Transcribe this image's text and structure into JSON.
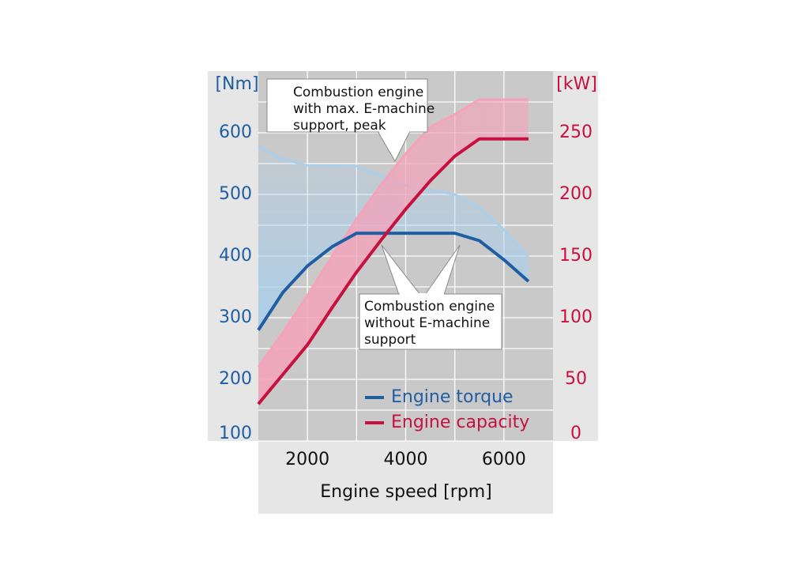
{
  "chart_data": {
    "type": "line",
    "x": [
      1000,
      1500,
      2000,
      2500,
      3000,
      3500,
      4000,
      4500,
      5000,
      5500,
      6000,
      6500
    ],
    "xlabel": "Engine speed [rpm]",
    "ylabel": "[Nm]",
    "y2label": "[kW]",
    "xlim": [
      1000,
      7000
    ],
    "xticks": [
      2000,
      4000,
      6000
    ],
    "ylim": [
      100,
      700
    ],
    "yticks": [
      100,
      200,
      300,
      400,
      500,
      600
    ],
    "y2lim": [
      0,
      300
    ],
    "y2ticks": [
      0,
      50,
      100,
      150,
      200,
      250
    ],
    "grid": true,
    "minor_grid": true,
    "legend": "lower right",
    "series": [
      {
        "name": "Engine torque",
        "color": "#1f5ea3",
        "axis": "y",
        "values": [
          280,
          341,
          384,
          415,
          437,
          437,
          437,
          437,
          437,
          425,
          394,
          359
        ],
        "peak_values": [
          578,
          557,
          547,
          547,
          546,
          530,
          515,
          507,
          500,
          479,
          443,
          399
        ],
        "peak_color": "#a9cfec"
      },
      {
        "name": "Engine capacity",
        "color": "#c8103e",
        "axis": "y2",
        "values": [
          30,
          54,
          78,
          108,
          137,
          163,
          188,
          211,
          231,
          245,
          245,
          245
        ],
        "peak_values": [
          60,
          88,
          118,
          150,
          180,
          208,
          233,
          255,
          265,
          277,
          277,
          277
        ],
        "peak_color": "#f3a3ba"
      }
    ],
    "annotations": [
      {
        "lines": [
          "Combustion engine",
          "with max. E-machine",
          "support, peak"
        ]
      },
      {
        "lines": [
          "Combustion engine",
          "without E-machine",
          "support"
        ]
      }
    ]
  }
}
